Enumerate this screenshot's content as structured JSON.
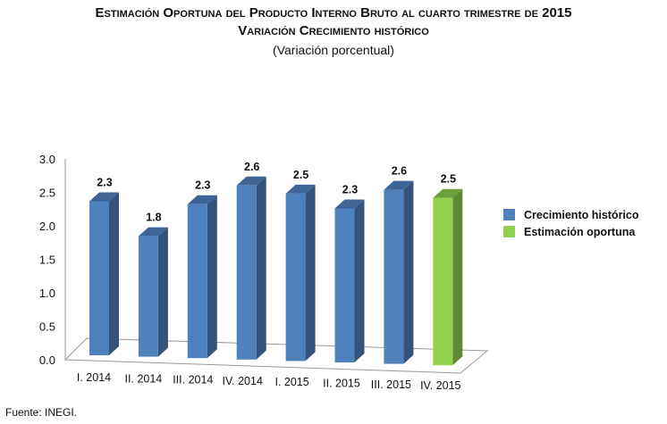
{
  "title": "Estimación Oportuna del Producto Interno Bruto al cuarto trimestre de 2015",
  "subtitle": "Variación Crecimiento histórico",
  "unit_note": "(Variación porcentual)",
  "source": "Fuente: INEGI.",
  "chart_data": {
    "type": "bar",
    "style": "3d-column",
    "categories": [
      "I. 2014",
      "II. 2014",
      "III. 2014",
      "IV. 2014",
      "I. 2015",
      "II. 2015",
      "III. 2015",
      "IV. 2015"
    ],
    "values": [
      2.3,
      1.8,
      2.3,
      2.6,
      2.5,
      2.3,
      2.6,
      2.5
    ],
    "series_kind": [
      "historico",
      "historico",
      "historico",
      "historico",
      "historico",
      "historico",
      "historico",
      "estimacion"
    ],
    "ylim": [
      0,
      3.0
    ],
    "yticks": [
      "0.0",
      "0.5",
      "1.0",
      "1.5",
      "2.0",
      "2.5",
      "3.0"
    ],
    "grid": false,
    "legend_position": "right",
    "legend": [
      {
        "name": "Crecimiento histórico",
        "color": "#4f81bd"
      },
      {
        "name": "Estimación oportuna",
        "color": "#92d050"
      }
    ],
    "colors": {
      "historico": "#4f81bd",
      "historico_side": "#34527a",
      "estimacion": "#92d050",
      "estimacion_side": "#5f8a30"
    }
  }
}
